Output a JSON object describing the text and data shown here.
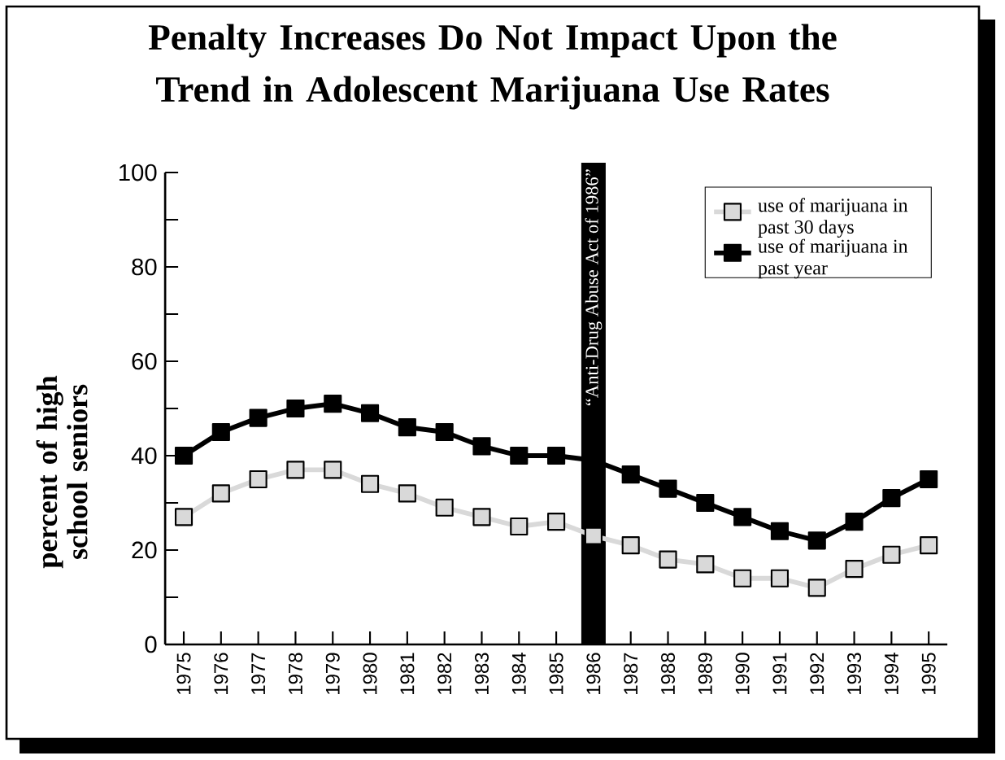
{
  "chart_data": {
    "type": "line",
    "title": "Penalty Increases Do Not Impact Upon the Trend in Adolescent Marijuana Use Rates",
    "ylabel": "percent of high school seniors",
    "categories": [
      "1975",
      "1976",
      "1977",
      "1978",
      "1979",
      "1980",
      "1981",
      "1982",
      "1983",
      "1984",
      "1985",
      "1986",
      "1987",
      "1988",
      "1989",
      "1990",
      "1991",
      "1992",
      "1993",
      "1994",
      "1995"
    ],
    "series": [
      {
        "name": "use of marijuana in past 30 days",
        "color": "#d9d9d9",
        "values": [
          27,
          32,
          35,
          37,
          37,
          34,
          32,
          29,
          27,
          25,
          26,
          23,
          21,
          18,
          17,
          14,
          14,
          12,
          16,
          19,
          21
        ]
      },
      {
        "name": "use of marijuana in past year",
        "color": "#000000",
        "values": [
          40,
          45,
          48,
          50,
          51,
          49,
          46,
          45,
          42,
          40,
          40,
          39,
          36,
          33,
          30,
          27,
          24,
          22,
          26,
          31,
          35
        ]
      }
    ],
    "ylim": [
      0,
      100
    ],
    "yticks": [
      0,
      {
        "value": 10,
        "label": null
      },
      20,
      {
        "value": 30,
        "label": null
      },
      40,
      {
        "value": 50,
        "label": null
      },
      60,
      {
        "value": 70,
        "label": null
      },
      80,
      {
        "value": 90,
        "label": null
      },
      100
    ],
    "ref_lines": [
      {
        "axis": "x",
        "value": "1986",
        "label": "“Anti-Drug Abuse Act of 1986”",
        "color": "#000000"
      }
    ],
    "grid": false,
    "legend": "top right",
    "marker": "square",
    "line_style": "solid"
  }
}
